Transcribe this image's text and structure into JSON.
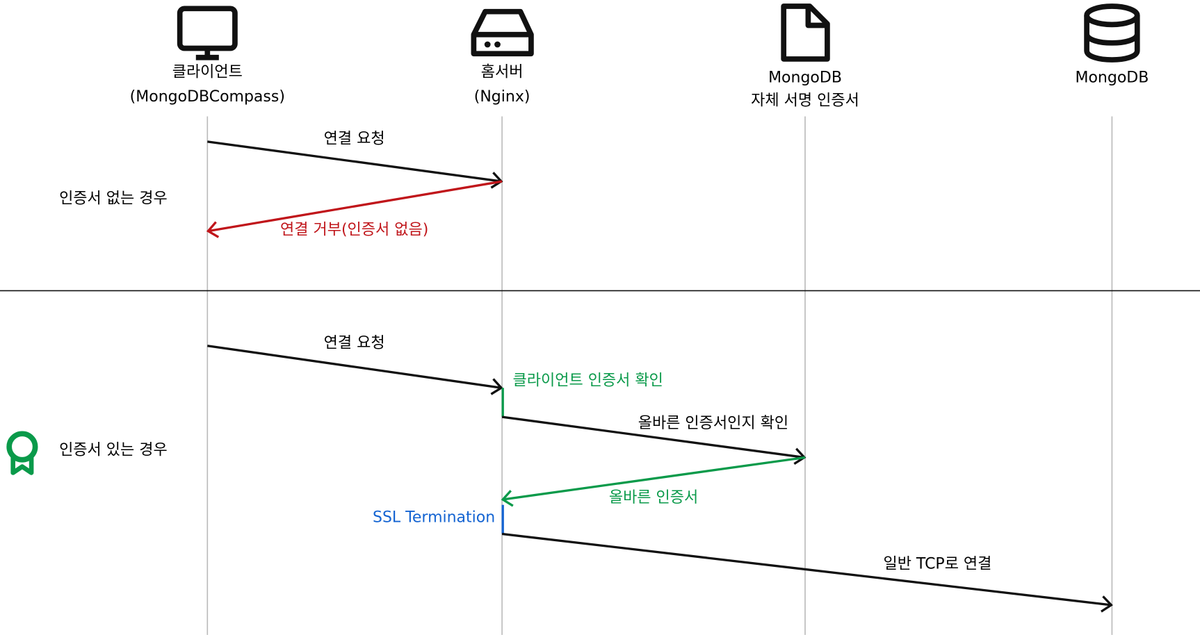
{
  "participants": [
    {
      "lines": [
        "클라이언트",
        "(MongoDBCompass)"
      ]
    },
    {
      "lines": [
        "홈서버",
        "(Nginx)"
      ]
    },
    {
      "lines": [
        "MongoDB",
        "자체 서명 인증서"
      ]
    },
    {
      "lines": [
        "MongoDB"
      ]
    }
  ],
  "sections": [
    {
      "label": "인증서 없는 경우",
      "messages": [
        {
          "label": "연결 요청"
        },
        {
          "label": "연결 거부(인증서 없음)"
        }
      ]
    },
    {
      "label": "인증서 있는 경우",
      "messages": [
        {
          "label": "연결 요청"
        },
        {
          "label": "클라이언트 인증서 확인"
        },
        {
          "label": "올바른 인증서인지 확인"
        },
        {
          "label": "올바른 인증서"
        },
        {
          "label": "SSL Termination"
        },
        {
          "label": "일반 TCP로 연결"
        }
      ]
    }
  ]
}
